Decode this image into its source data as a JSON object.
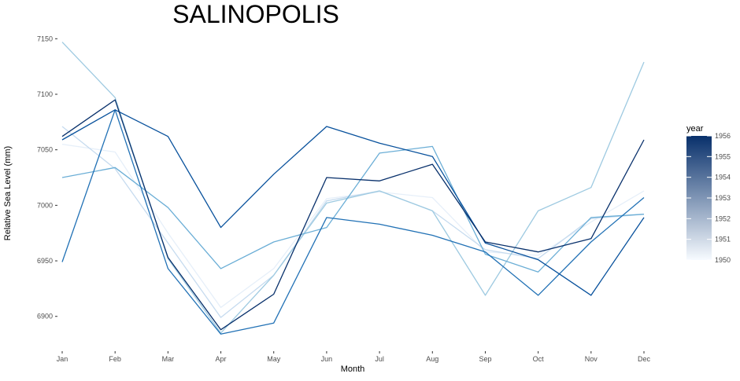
{
  "chart_data": {
    "type": "line",
    "title": "SALINOPOLIS",
    "xlabel": "Month",
    "ylabel": "Relative Sea Level (mm)",
    "categories": [
      "Jan",
      "Feb",
      "Mar",
      "Apr",
      "May",
      "Jun",
      "Jul",
      "Aug",
      "Sep",
      "Oct",
      "Nov",
      "Dec"
    ],
    "y_ticks": [
      6900,
      6950,
      7000,
      7050,
      7100,
      7150
    ],
    "ylim": [
      6880,
      7158
    ],
    "grid": false,
    "legend": {
      "title": "year",
      "position": "right",
      "type": "colorbar",
      "min": 1950,
      "max": 1956,
      "ticks": [
        1950,
        1951,
        1952,
        1953,
        1954,
        1955,
        1956
      ],
      "color_low": "#f7fbff",
      "color_high": "#08306b"
    },
    "series": [
      {
        "year": 1950,
        "color": "#e6eff9",
        "values": [
          7055,
          7048,
          6975,
          6908,
          6943,
          7006,
          7012,
          7007,
          6958,
          6955,
          6985,
          7013
        ]
      },
      {
        "year": 1951,
        "color": "#c6dbef",
        "values": [
          7071,
          7033,
          6966,
          6899,
          6937,
          7004,
          7013,
          6995,
          6960,
          6952,
          6988,
          6992
        ]
      },
      {
        "year": 1952,
        "color": "#9ecae1",
        "values": [
          7147,
          7097,
          6952,
          6885,
          6937,
          7002,
          7013,
          6995,
          6919,
          6995,
          7016,
          7129
        ]
      },
      {
        "year": 1953,
        "color": "#6baed6",
        "values": [
          7025,
          7034,
          6998,
          6943,
          6967,
          6980,
          7047,
          7053,
          6956,
          6940,
          6989,
          6992
        ]
      },
      {
        "year": 1954,
        "color": "#2171b5",
        "values": [
          6949,
          7086,
          6943,
          6884,
          6894,
          6989,
          6983,
          6973,
          6958,
          6919,
          6967,
          7007
        ]
      },
      {
        "year": 1955,
        "color": "#08519c",
        "values": [
          7059,
          7086,
          7062,
          6980,
          7028,
          7071,
          7056,
          7044,
          6966,
          6951,
          6919,
          6989
        ]
      },
      {
        "year": 1956,
        "color": "#08306b",
        "values": [
          7062,
          7095,
          6953,
          6888,
          6920,
          7025,
          7022,
          7037,
          6967,
          6958,
          6970,
          7059
        ]
      }
    ]
  }
}
